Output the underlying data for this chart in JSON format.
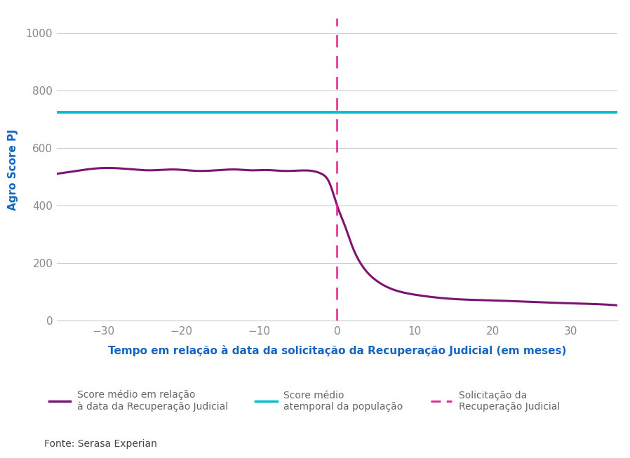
{
  "xlim": [
    -36,
    36
  ],
  "ylim": [
    0,
    1050
  ],
  "xticks": [
    -30,
    -20,
    -10,
    0,
    10,
    20,
    30
  ],
  "yticks": [
    0,
    200,
    400,
    600,
    800,
    1000
  ],
  "xlabel": "Tempo em relação à data da solicitação da Recuperação Judicial (em meses)",
  "ylabel": "Agro Score PJ",
  "xlabel_color": "#1565c0",
  "ylabel_color": "#1565c0",
  "score_line_color": "#7b1573",
  "atemporal_line_color": "#00bcd4",
  "atemporal_value": 725,
  "vline_color": "#e91e8c",
  "vline_x": 0,
  "background_color": "#ffffff",
  "grid_color": "#cccccc",
  "tick_color": "#888888",
  "tick_fontsize": 11,
  "xlabel_fontsize": 11,
  "ylabel_fontsize": 11,
  "legend_label_1": "Score médio em relação\nà data da Recuperação Judicial",
  "legend_label_2": "Score médio\natemporal da população",
  "legend_label_3": "Solicitação da\nRecuperação Judicial",
  "fonte": "Fonte: Serasa Experian",
  "fonte_color": "#444444",
  "fonte_fontsize": 10,
  "legend_fontsize": 10,
  "legend_text_color": "#666666"
}
